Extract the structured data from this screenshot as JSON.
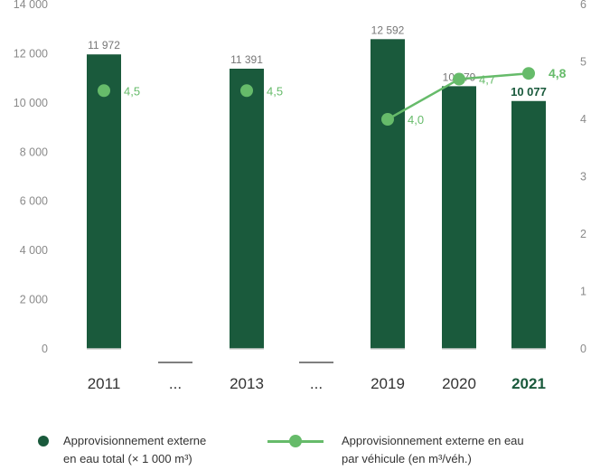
{
  "chart_data": {
    "type": "bar",
    "categories": [
      "2011",
      "...",
      "2013",
      "...",
      "2019",
      "2020",
      "2021"
    ],
    "left_axis": {
      "ticks": [
        "0",
        "2 000",
        "4 000",
        "6 000",
        "8 000",
        "10 000",
        "12 000",
        "14 000"
      ],
      "range": [
        0,
        14000
      ]
    },
    "right_axis": {
      "ticks": [
        "0",
        "1",
        "2",
        "3",
        "4",
        "5",
        "6"
      ],
      "range": [
        0,
        6
      ]
    },
    "series": [
      {
        "name": "Approvisionnement externe en eau total (× 1 000 m³)",
        "kind": "bar",
        "color": "#1a5a3c",
        "values": [
          11972,
          null,
          11391,
          null,
          12592,
          10679,
          10077
        ],
        "labels": [
          "11 972",
          "",
          "11 391",
          "",
          "12 592",
          "10 679",
          "10 077"
        ]
      },
      {
        "name": "Approvisionnement externe en eau par véhicule (en m³/véh.)",
        "kind": "line",
        "color": "#66bb6a",
        "axis": "right",
        "values": [
          4.5,
          null,
          4.5,
          null,
          4.0,
          4.7,
          4.8
        ],
        "labels": [
          "4,5",
          "",
          "4,5",
          "",
          "4,0",
          "4,7",
          "4,8"
        ]
      }
    ],
    "highlight_category": "2021",
    "legend": {
      "bar": [
        "Approvisionnement externe",
        "en eau total (× 1 000 m³)"
      ],
      "line": [
        "Approvisionnement externe en eau",
        "par véhicule (en m³/véh.)"
      ]
    }
  }
}
